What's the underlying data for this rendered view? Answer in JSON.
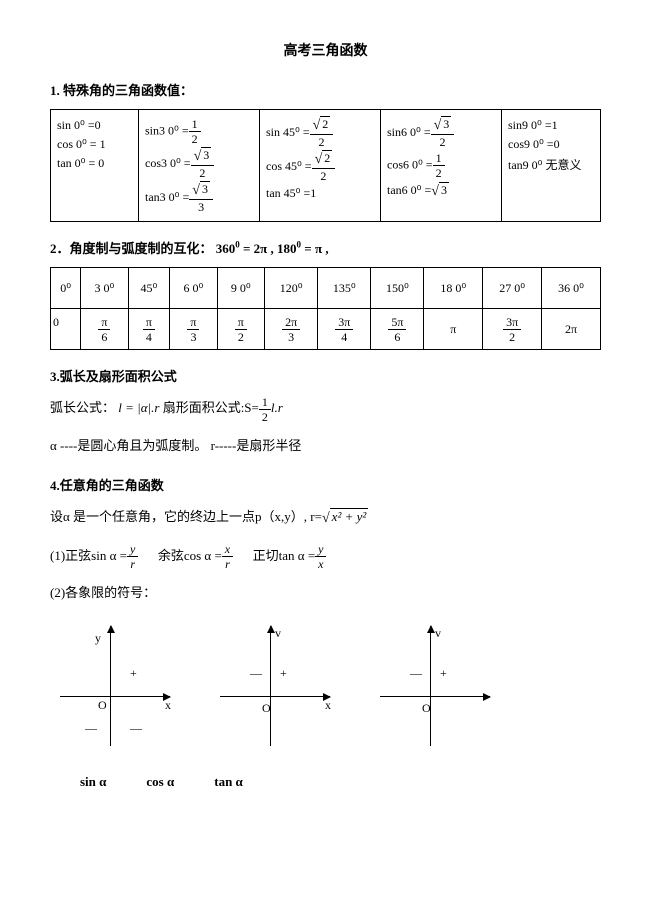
{
  "title": "高考三角函数",
  "s1": {
    "head": "1. 特殊角的三角函数值：",
    "cells": {
      "c0r0": "sin 0⁰ =0",
      "c0r1": "cos 0⁰ = 1",
      "c0r2": "tan 0⁰ = 0",
      "c1l0": "sin3 0⁰ =",
      "c1l1": "cos3 0⁰ =",
      "c1l2": "tan3 0⁰ =",
      "c2l0": "sin 45⁰ =",
      "c2l1": "cos 45⁰ =",
      "c2l2": "tan 45⁰ =1",
      "c3l0": "sin6 0⁰ =",
      "c3l1": "cos6 0⁰ =",
      "c3l2": "tan6 0⁰ =",
      "c4r0": "sin9 0⁰ =1",
      "c4r1": "cos9 0⁰ =0",
      "c4r2": "tan9 0⁰ 无意义"
    }
  },
  "s2": {
    "head": "2．角度制与弧度制的互化：",
    "conv1a": "360",
    "conv1b": " = 2π ,  ",
    "conv2a": "180",
    "conv2b": " = π ,",
    "row1": [
      "0⁰",
      "3 0⁰",
      "45⁰",
      "6 0⁰",
      "9 0⁰",
      "120⁰",
      "135⁰",
      "150⁰",
      "18 0⁰",
      "27 0⁰",
      "36 0⁰"
    ],
    "row2_first": "0",
    "fracs": [
      {
        "n": "π",
        "d": "6"
      },
      {
        "n": "π",
        "d": "4"
      },
      {
        "n": "π",
        "d": "3"
      },
      {
        "n": "π",
        "d": "2"
      },
      {
        "n": "2π",
        "d": "3"
      },
      {
        "n": "3π",
        "d": "4"
      },
      {
        "n": "5π",
        "d": "6"
      }
    ],
    "pi": "π",
    "frac9": {
      "n": "3π",
      "d": "2"
    },
    "twopi": "2π"
  },
  "s3": {
    "head": "3.弧长及扇形面积公式",
    "arc_label": "弧长公式：",
    "arc_formula_l": "l = |α|.r",
    "area_label": "   扇形面积公式:S=",
    "area_suffix": "l.r",
    "note_alpha": "α ----是圆心角且为弧度制。 r-----是扇形半径"
  },
  "s4": {
    "head": "4.任意角的三角函数",
    "line1a": "设α 是一个任意角，它的终边上一点p（x,y）, r=",
    "line1b": "x² + y²",
    "sin_label": "(1)正弦sin α =",
    "cos_label": "余弦cos α =",
    "tan_label": "正切tan α =",
    "line3": "(2)各象限的符号：",
    "diag": {
      "y": "y",
      "v": "v",
      "x": "x",
      "O": "O",
      "plus": "+",
      "minus": "—"
    },
    "captions": [
      "sin α",
      "cos α",
      "tan α"
    ]
  }
}
